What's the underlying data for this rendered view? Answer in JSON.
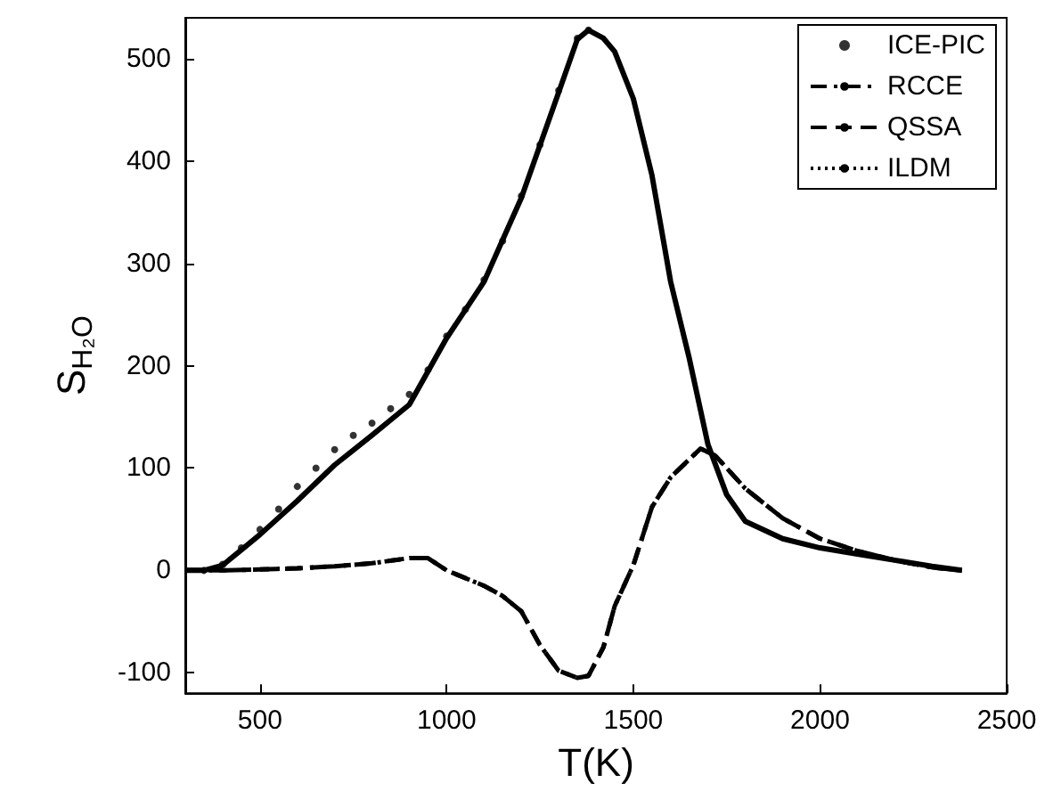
{
  "chart_data": {
    "type": "line",
    "xlabel": "T(K)",
    "ylabel": "S$_{H₂O}$",
    "xlim": [
      300,
      2500
    ],
    "xticks": [
      500,
      1000,
      1500,
      2000,
      2500
    ],
    "ylim": [
      -120,
      540
    ],
    "yticks": [
      -100,
      0,
      100,
      200,
      300,
      400,
      500
    ],
    "legend": "top right",
    "grid": false,
    "series": [
      {
        "color": "#000000",
        "line_style": "solid",
        "marker": "none",
        "x": [
          300,
          350,
          400,
          450,
          500,
          600,
          700,
          800,
          900,
          1000,
          1100,
          1200,
          1300,
          1350,
          1380,
          1420,
          1450,
          1500,
          1550,
          1600,
          1650,
          1700,
          1750,
          1800,
          1900,
          2000,
          2100,
          2200,
          2300,
          2380
        ],
        "values": [
          0,
          0,
          5,
          20,
          35,
          68,
          103,
          132,
          162,
          227,
          282,
          364,
          467,
          519,
          528,
          520,
          507,
          461,
          386,
          282,
          207,
          123,
          74,
          48,
          31,
          22,
          16,
          10,
          4,
          0
        ]
      },
      {
        "name": "ICE-PIC",
        "type": "scatter",
        "color": "#000000",
        "marker": "circle",
        "x": [
          350,
          400,
          450,
          500,
          550,
          600,
          650,
          700,
          750,
          800,
          850,
          900,
          950,
          1000,
          1050,
          1100,
          1150,
          1200,
          1250,
          1300,
          1350,
          1380
        ],
        "values": [
          0,
          6,
          22,
          40,
          60,
          82,
          100,
          118,
          132,
          144,
          158,
          172,
          196,
          229,
          255,
          284,
          322,
          366,
          416,
          469,
          520,
          528
        ]
      },
      {
        "name": "RCCE",
        "color": "#000000",
        "line_style": "dashdot",
        "marker": "none",
        "x": [
          300,
          400,
          500,
          600,
          700,
          800,
          900,
          950,
          1000,
          1100,
          1150,
          1200,
          1250,
          1300,
          1350,
          1380,
          1420,
          1450,
          1500,
          1550,
          1600,
          1680,
          1720,
          1800,
          1900,
          2000,
          2100,
          2200,
          2300,
          2380
        ],
        "values": [
          0,
          0,
          1,
          2,
          4,
          7,
          12,
          12,
          0,
          -15,
          -25,
          -40,
          -73,
          -98,
          -105,
          -103,
          -75,
          -35,
          5,
          62,
          91,
          119,
          112,
          80,
          51,
          31,
          19,
          10,
          3,
          0
        ]
      },
      {
        "name": "QSSA",
        "color": "#000000",
        "line_style": "dashed",
        "marker": "none",
        "x": [
          300,
          400,
          500,
          600,
          700,
          800,
          900,
          950,
          1000,
          1100,
          1150,
          1200,
          1250,
          1300,
          1350,
          1380,
          1420,
          1450,
          1500,
          1550,
          1600,
          1680,
          1720,
          1800,
          1900,
          2000,
          2100,
          2200,
          2300,
          2380
        ],
        "values": [
          0,
          0,
          1,
          2,
          4,
          7,
          12,
          12,
          0,
          -15,
          -25,
          -40,
          -73,
          -98,
          -105,
          -103,
          -75,
          -35,
          5,
          62,
          91,
          119,
          112,
          80,
          51,
          31,
          19,
          10,
          3,
          0
        ]
      },
      {
        "name": "ILDM",
        "color": "#000000",
        "line_style": "dotted",
        "marker": "none"
      }
    ]
  }
}
